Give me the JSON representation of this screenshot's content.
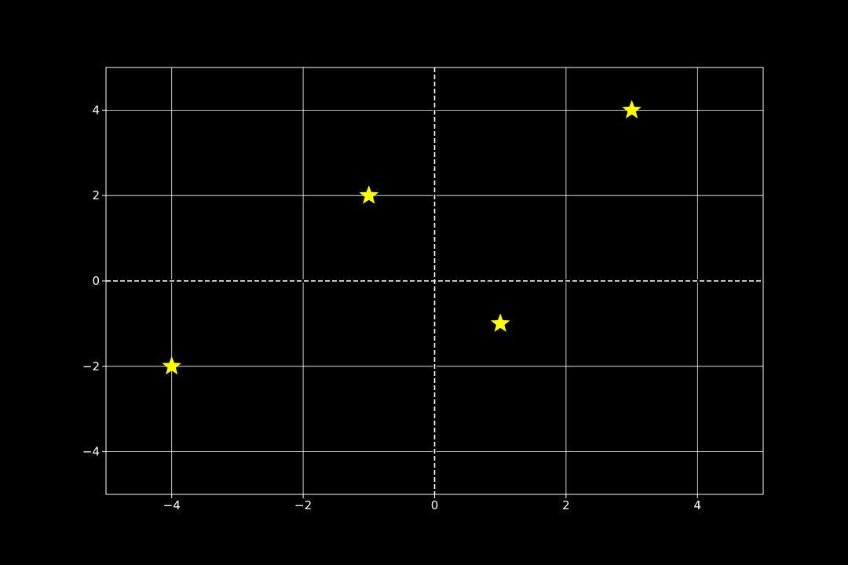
{
  "chart_data": {
    "type": "scatter",
    "title": "",
    "xlabel": "",
    "ylabel": "",
    "xlim": [
      -5,
      5
    ],
    "ylim": [
      -5,
      5
    ],
    "xticks": [
      -4,
      -2,
      0,
      2,
      4
    ],
    "yticks": [
      -4,
      -2,
      0,
      2,
      4
    ],
    "x_tick_labels": [
      "−4",
      "−2",
      "0",
      "2",
      "4"
    ],
    "y_tick_labels": [
      "−4",
      "−2",
      "0",
      "2",
      "4"
    ],
    "grid": true,
    "reference_lines": {
      "x": 0,
      "y": 0,
      "style": "dashed"
    },
    "marker": "star",
    "series": [
      {
        "points": [
          {
            "x": -4,
            "y": -2
          },
          {
            "x": -1,
            "y": 2
          },
          {
            "x": 1,
            "y": -1
          },
          {
            "x": 3,
            "y": 4
          }
        ]
      }
    ],
    "colors": {
      "background": "#000000",
      "axes": "#ffffff",
      "grid": "#ffffff",
      "marker": "#ffff00"
    }
  }
}
